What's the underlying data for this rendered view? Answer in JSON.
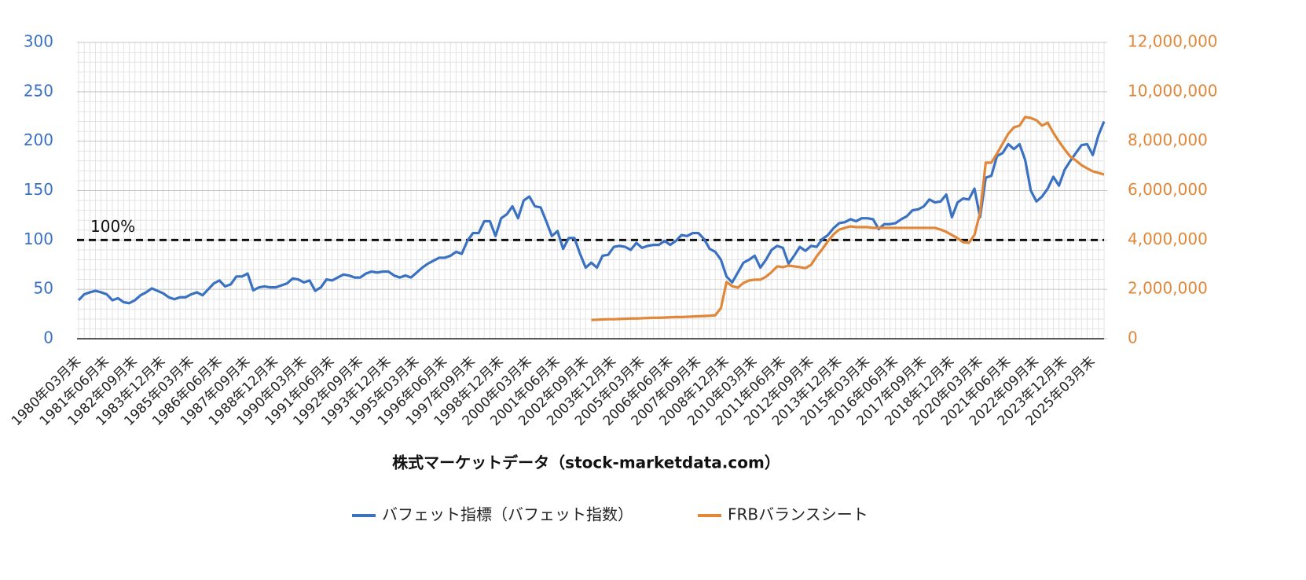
{
  "chart_data": {
    "type": "line",
    "x_label": "株式マーケットデータ（stock-marketdata.com）",
    "categories": [
      "1980年03月末",
      null,
      null,
      null,
      null,
      "1981年06月末",
      null,
      null,
      null,
      null,
      "1982年09月末",
      null,
      null,
      null,
      null,
      "1983年12月末",
      null,
      null,
      null,
      null,
      "1985年03月末",
      null,
      null,
      null,
      null,
      "1986年06月末",
      null,
      null,
      null,
      null,
      "1987年09月末",
      null,
      null,
      null,
      null,
      "1988年12月末",
      null,
      null,
      null,
      null,
      "1990年03月末",
      null,
      null,
      null,
      null,
      "1991年06月末",
      null,
      null,
      null,
      null,
      "1992年09月末",
      null,
      null,
      null,
      null,
      "1993年12月末",
      null,
      null,
      null,
      null,
      "1995年03月末",
      null,
      null,
      null,
      null,
      "1996年06月末",
      null,
      null,
      null,
      null,
      "1997年09月末",
      null,
      null,
      null,
      null,
      "1998年12月末",
      null,
      null,
      null,
      null,
      "2000年03月末",
      null,
      null,
      null,
      null,
      "2001年06月末",
      null,
      null,
      null,
      null,
      "2002年09月末",
      null,
      null,
      null,
      null,
      "2003年12月末",
      null,
      null,
      null,
      null,
      "2005年03月末",
      null,
      null,
      null,
      null,
      "2006年06月末",
      null,
      null,
      null,
      null,
      "2007年09月末",
      null,
      null,
      null,
      null,
      "2008年12月末",
      null,
      null,
      null,
      null,
      "2010年03月末",
      null,
      null,
      null,
      null,
      "2011年06月末",
      null,
      null,
      null,
      null,
      "2012年09月末",
      null,
      null,
      null,
      null,
      "2013年12月末",
      null,
      null,
      null,
      null,
      "2015年03月末",
      null,
      null,
      null,
      null,
      "2016年06月末",
      null,
      null,
      null,
      null,
      "2017年09月末",
      null,
      null,
      null,
      null,
      "2018年12月末",
      null,
      null,
      null,
      null,
      "2020年03月末",
      null,
      null,
      null,
      null,
      "2021年06月末",
      null,
      null,
      null,
      null,
      "2022年09月末",
      null,
      null,
      null,
      null,
      "2023年12月末",
      null,
      null,
      null,
      null,
      "2025年03月末",
      null,
      null
    ],
    "series": [
      {
        "name": "バフェット指標（バフェット指数）",
        "color": "#3a71c1",
        "axis": "y",
        "values": [
          39,
          45,
          47,
          48.5,
          47,
          45,
          39,
          41,
          37,
          36,
          39,
          44,
          47,
          51,
          48.5,
          46,
          42,
          40,
          42,
          42,
          45,
          47,
          44,
          50,
          56,
          59,
          53,
          55,
          63,
          63,
          66,
          49,
          52,
          53,
          52,
          52,
          54,
          56,
          61,
          60,
          57,
          59,
          48.5,
          52,
          60,
          59,
          62,
          65,
          64,
          62,
          62,
          66,
          68,
          67,
          68,
          68,
          64,
          62,
          64,
          62,
          67,
          72,
          76,
          79,
          82,
          82,
          84,
          88,
          86,
          99,
          107,
          107,
          119,
          119,
          104,
          122,
          126,
          134,
          122,
          140,
          144,
          134,
          133,
          119,
          104,
          109,
          91,
          102,
          102,
          86,
          72,
          77,
          72,
          84,
          85,
          93,
          94,
          93,
          90,
          97,
          92,
          94,
          95,
          95,
          99,
          95,
          99,
          105,
          104,
          107,
          107,
          101,
          91,
          88,
          80,
          63,
          57,
          67,
          77,
          80,
          84,
          72,
          80,
          90,
          94,
          92,
          76,
          84,
          93,
          89,
          94,
          93,
          101,
          105,
          112,
          117,
          118,
          121,
          119,
          122,
          122,
          121,
          111,
          116,
          116,
          117,
          121,
          124,
          130,
          131,
          134,
          141,
          138,
          139,
          146,
          123,
          138,
          142,
          141,
          152,
          123,
          163,
          165,
          185,
          188,
          197,
          192,
          197,
          181,
          150,
          139,
          144,
          152,
          164,
          155,
          171,
          180,
          188,
          196,
          197,
          186,
          206,
          220
        ]
      },
      {
        "name": "FRBバランスシート",
        "color": "#e0873a",
        "axis": "y2",
        "values": [
          null,
          null,
          null,
          null,
          null,
          null,
          null,
          null,
          null,
          null,
          null,
          null,
          null,
          null,
          null,
          null,
          null,
          null,
          null,
          null,
          null,
          null,
          null,
          null,
          null,
          null,
          null,
          null,
          null,
          null,
          null,
          null,
          null,
          null,
          null,
          null,
          null,
          null,
          null,
          null,
          null,
          null,
          null,
          null,
          null,
          null,
          null,
          null,
          null,
          null,
          null,
          null,
          null,
          null,
          null,
          null,
          null,
          null,
          null,
          null,
          null,
          null,
          null,
          null,
          null,
          null,
          null,
          null,
          null,
          null,
          null,
          null,
          null,
          null,
          null,
          null,
          null,
          null,
          null,
          null,
          null,
          null,
          null,
          null,
          null,
          null,
          null,
          null,
          null,
          null,
          null,
          760000,
          770000,
          780000,
          790000,
          790000,
          800000,
          810000,
          820000,
          820000,
          830000,
          840000,
          850000,
          850000,
          860000,
          870000,
          880000,
          880000,
          890000,
          900000,
          910000,
          920000,
          930000,
          950000,
          1240000,
          2300000,
          2130000,
          2070000,
          2260000,
          2360000,
          2390000,
          2390000,
          2510000,
          2700000,
          2930000,
          2900000,
          2960000,
          2930000,
          2900000,
          2860000,
          2990000,
          3340000,
          3630000,
          3950000,
          4230000,
          4420000,
          4490000,
          4550000,
          4520000,
          4520000,
          4520000,
          4490000,
          4490000,
          4490000,
          4490000,
          4490000,
          4490000,
          4490000,
          4490000,
          4490000,
          4490000,
          4490000,
          4490000,
          4420000,
          4330000,
          4200000,
          4070000,
          3910000,
          3880000,
          4200000,
          5100000,
          7130000,
          7130000,
          7500000,
          7900000,
          8300000,
          8560000,
          8630000,
          8980000,
          8940000,
          8850000,
          8630000,
          8750000,
          8340000,
          7990000,
          7670000,
          7380000,
          7220000,
          7030000,
          6900000,
          6780000,
          6720000,
          6650000
        ]
      }
    ],
    "ylim": [
      0,
      300
    ],
    "yticks": [
      0,
      50,
      100,
      150,
      200,
      250,
      300
    ],
    "y2lim": [
      0,
      12000000
    ],
    "y2ticks": [
      0,
      {
        "value": 2000000,
        "label": "2,000,000"
      },
      {
        "value": 4000000,
        "label": "4,000,000"
      },
      {
        "value": 6000000,
        "label": "6,000,000"
      },
      {
        "value": 8000000,
        "label": "8,000,000"
      },
      {
        "value": 10000000,
        "label": "10,000,000"
      },
      {
        "value": 12000000,
        "label": "12,000,000"
      }
    ],
    "reference_line": {
      "value": 100,
      "label": "100%"
    },
    "grid": true,
    "legend": "bottom"
  }
}
